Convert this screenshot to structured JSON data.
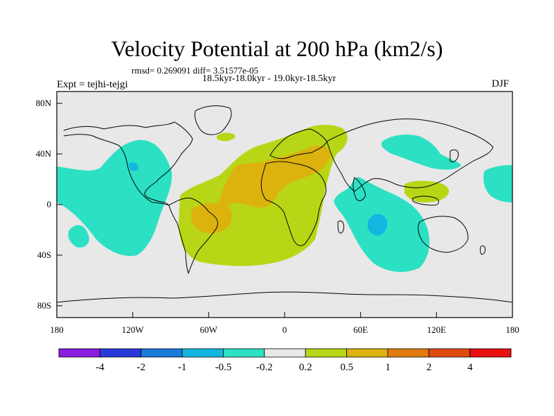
{
  "title": "Velocity Potential at 200 hPa (km2/s)",
  "stats": "rmsd= 0.269091 diff= 3.51577e-05",
  "period": "18.5kyr-18.0kyr - 19.0kyr-18.5kyr",
  "experiment": "Expt = tejhi-tejgi",
  "season": "DJF",
  "lat_ticks": [
    "80N",
    "40N",
    "0",
    "40S",
    "80S"
  ],
  "lon_ticks": [
    "180",
    "120W",
    "60W",
    "0",
    "60E",
    "120E",
    "180"
  ],
  "colorbar": {
    "labels": [
      "-4",
      "-2",
      "-1",
      "-0.5",
      "-0.2",
      "0.2",
      "0.5",
      "1",
      "2",
      "4"
    ],
    "colors": [
      "#8a1ee0",
      "#2a3ad8",
      "#1a7ad8",
      "#12b6e0",
      "#2ce0c4",
      "#e8e8e8",
      "#b8d616",
      "#dcb20e",
      "#e07a10",
      "#e04a10",
      "#e81010"
    ]
  },
  "colors": {
    "background": "#e8e8e8",
    "neg_weak": "#2ce0c4",
    "neg_mid": "#12b6e0",
    "pos_weak": "#b8d616",
    "pos_mid": "#dcb20e"
  }
}
